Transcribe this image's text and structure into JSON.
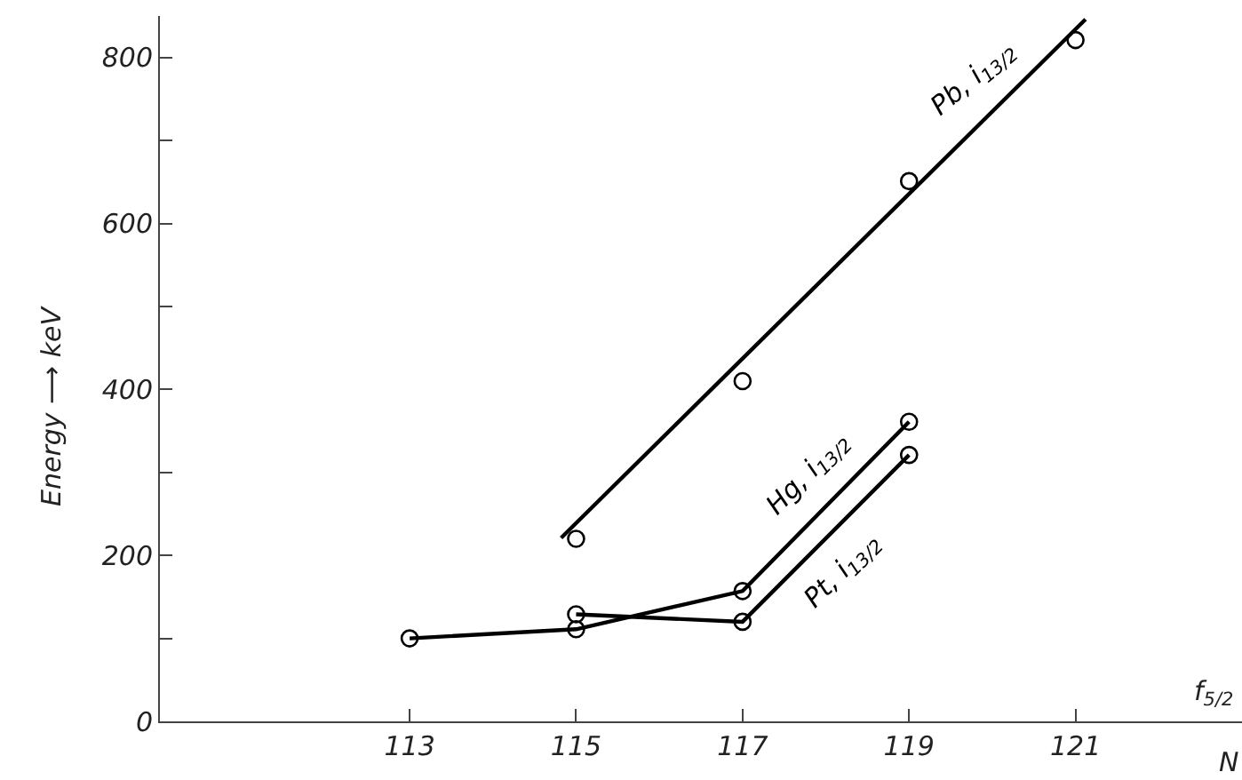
{
  "chart_data": {
    "type": "line",
    "xlabel": "N",
    "ylabel": "Energy ⟶ keV",
    "annotations": [
      "f$_{5/2}$"
    ],
    "xlim": [
      110,
      123
    ],
    "xticks": [
      113,
      115,
      117,
      119,
      121
    ],
    "ylim": [
      0,
      850
    ],
    "yticks": [
      0,
      {
        "value": 100,
        "label": null
      },
      200,
      {
        "value": 300,
        "label": null
      },
      400,
      {
        "value": 500,
        "label": null
      },
      600,
      {
        "value": 700,
        "label": null
      },
      800
    ],
    "legend": false,
    "marker": "circle",
    "line_style": "solid",
    "series": [
      {
        "name": "Pb, i$_{13/2}$",
        "type": "scatter",
        "color": "#000000",
        "x": [
          115,
          117,
          119,
          121
        ],
        "values": [
          220,
          410,
          651,
          821
        ]
      },
      {
        "marker": "none",
        "color": "#000000",
        "x": [
          114.82,
          121.12
        ],
        "values": [
          221,
          846
        ]
      },
      {
        "name": "Hg, i$_{13/2}$",
        "color": "#000000",
        "x": [
          113,
          115,
          117,
          119
        ],
        "values": [
          100,
          111,
          157,
          361
        ]
      },
      {
        "name": "Pt, i$_{13/2}$",
        "color": "#000000",
        "x": [
          115,
          117,
          119
        ],
        "values": [
          129,
          120,
          321
        ]
      }
    ]
  }
}
